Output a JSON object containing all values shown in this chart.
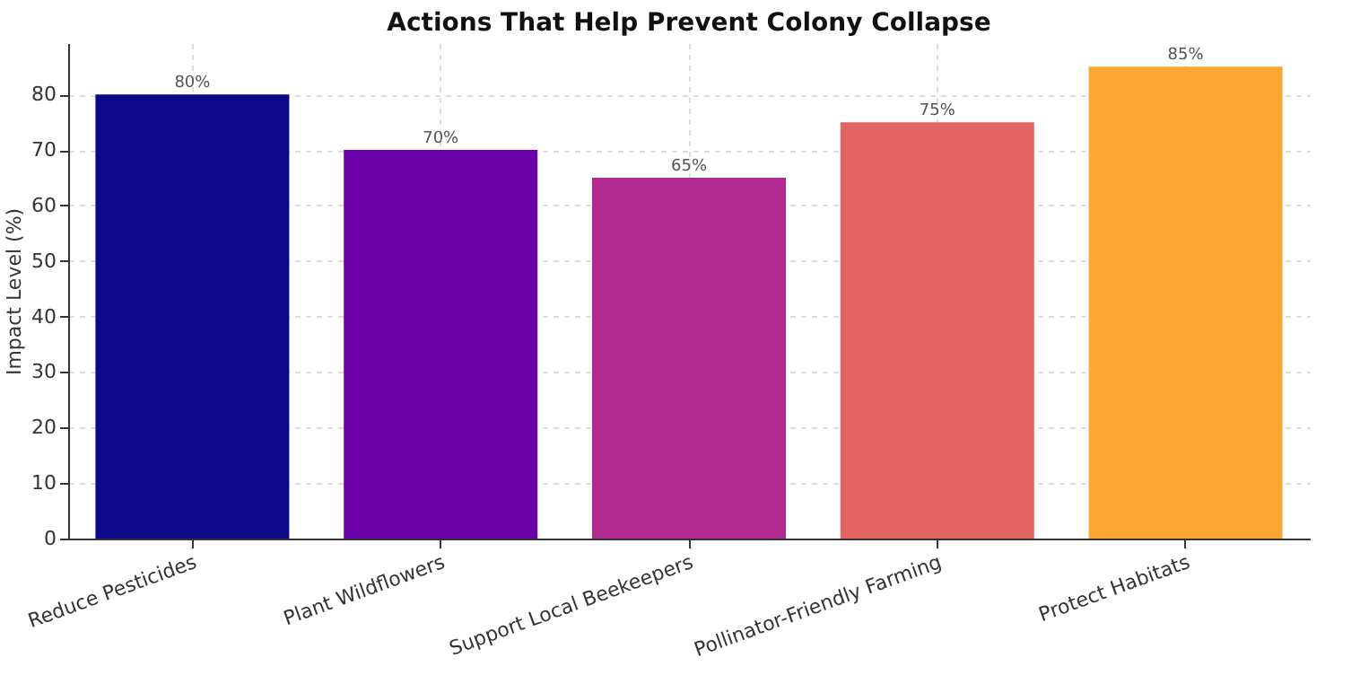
{
  "chart_data": {
    "type": "bar",
    "title": "Actions That Help Prevent Colony Collapse",
    "ylabel": "Impact Level (%)",
    "categories": [
      "Reduce Pesticides",
      "Plant Wildflowers",
      "Support Local Beekeepers",
      "Pollinator-Friendly Farming",
      "Protect Habitats"
    ],
    "values": [
      80,
      70,
      65,
      75,
      85
    ],
    "colors": [
      "#0d0887",
      "#6a00a8",
      "#b12a90",
      "#e16462",
      "#fca636"
    ],
    "value_labels": [
      "80%",
      "70%",
      "65%",
      "75%",
      "85%"
    ],
    "ylim": [
      0,
      89.25
    ],
    "yticks": [
      0,
      10,
      20,
      30,
      40,
      50,
      60,
      70,
      80
    ],
    "grid": true
  }
}
